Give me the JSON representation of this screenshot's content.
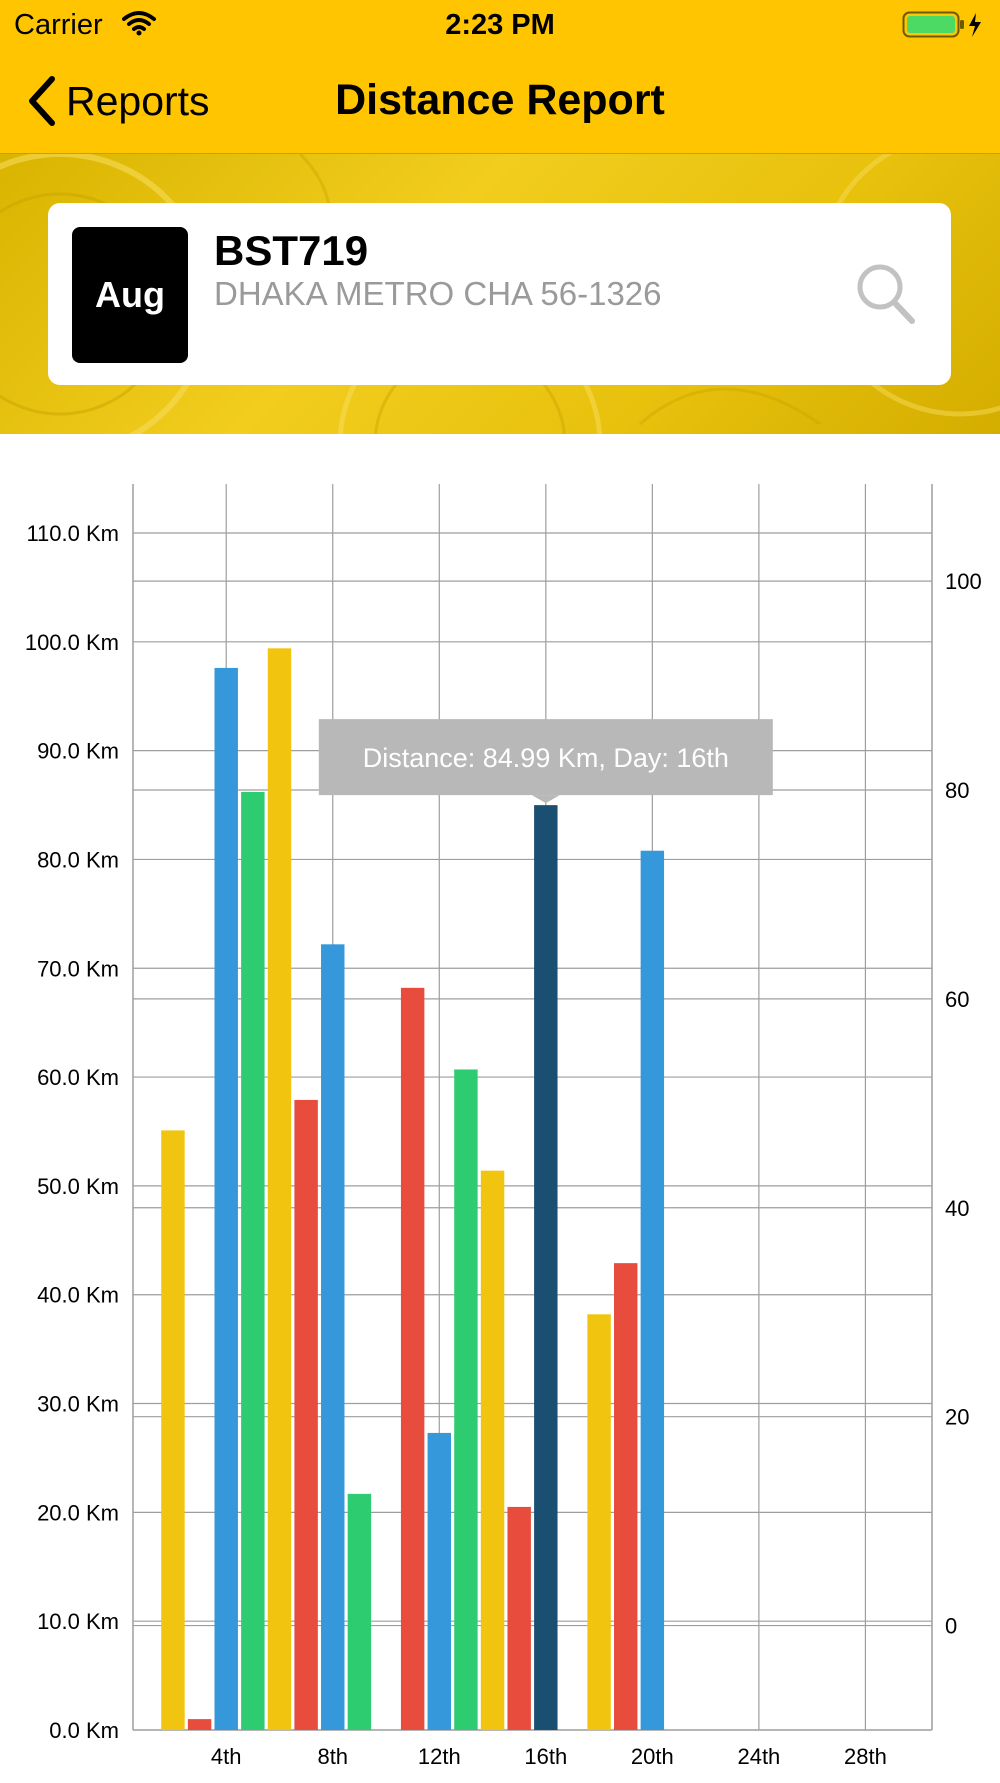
{
  "status_bar": {
    "carrier": "Carrier",
    "time": "2:23 PM"
  },
  "nav": {
    "back_label": "Reports",
    "title": "Distance Report"
  },
  "vehicle": {
    "month": "Aug",
    "name": "BST719",
    "plate": "DHAKA METRO CHA 56-1326"
  },
  "colors": {
    "accent": "#FFC500",
    "bar_yellow": "#F1C40F",
    "bar_red": "#E74C3C",
    "bar_blue": "#3498DB",
    "bar_green": "#2ECC71",
    "bar_selected": "#1B4F72",
    "tooltip_bg": "#B8B8B8"
  },
  "chart_data": {
    "type": "bar",
    "x": [
      1,
      2,
      3,
      4,
      5,
      6,
      7,
      8,
      9,
      10,
      11,
      12,
      13,
      14,
      15,
      16,
      17,
      18,
      19,
      20
    ],
    "values": [
      55.1,
      1.0,
      97.6,
      86.2,
      99.4,
      57.9,
      72.2,
      21.7,
      0,
      68.2,
      27.3,
      60.7,
      51.4,
      20.5,
      84.99,
      0,
      38.2,
      42.9,
      80.8,
      0
    ],
    "bar_colors": [
      "#F1C40F",
      "#E74C3C",
      "#3498DB",
      "#2ECC71",
      "#F1C40F",
      "#E74C3C",
      "#3498DB",
      "#2ECC71",
      "#F1C40F",
      "#E74C3C",
      "#3498DB",
      "#2ECC71",
      "#F1C40F",
      "#E74C3C",
      "#1B4F72",
      "#2ECC71",
      "#F1C40F",
      "#E74C3C",
      "#3498DB",
      "#2ECC71"
    ],
    "x_ticks": [
      {
        "x": 3,
        "label": "4th"
      },
      {
        "x": 7,
        "label": "8th"
      },
      {
        "x": 11,
        "label": "12th"
      },
      {
        "x": 15,
        "label": "16th"
      },
      {
        "x": 19,
        "label": "20th"
      },
      {
        "x": 23,
        "label": "24th"
      },
      {
        "x": 27,
        "label": "28th"
      }
    ],
    "xlim": [
      -0.5,
      29.5
    ],
    "ylim": [
      0,
      114.5
    ],
    "y_ticks_left": [
      "0.0 Km",
      "10.0 Km",
      "20.0 Km",
      "30.0 Km",
      "40.0 Km",
      "50.0 Km",
      "60.0 Km",
      "70.0 Km",
      "80.0 Km",
      "90.0 Km",
      "100.0 Km",
      "110.0 Km"
    ],
    "y_ticks_left_values": [
      0,
      10,
      20,
      30,
      40,
      50,
      60,
      70,
      80,
      90,
      100,
      110
    ],
    "y_right_lim": [
      -10,
      109.3
    ],
    "y_ticks_right": [
      "0",
      "20",
      "40",
      "60",
      "80",
      "100"
    ],
    "y_ticks_right_values": [
      0,
      20,
      40,
      60,
      80,
      100
    ],
    "grid": true,
    "highlight_index": 14,
    "tooltip": "Distance: 84.99 Km, Day: 16th"
  }
}
